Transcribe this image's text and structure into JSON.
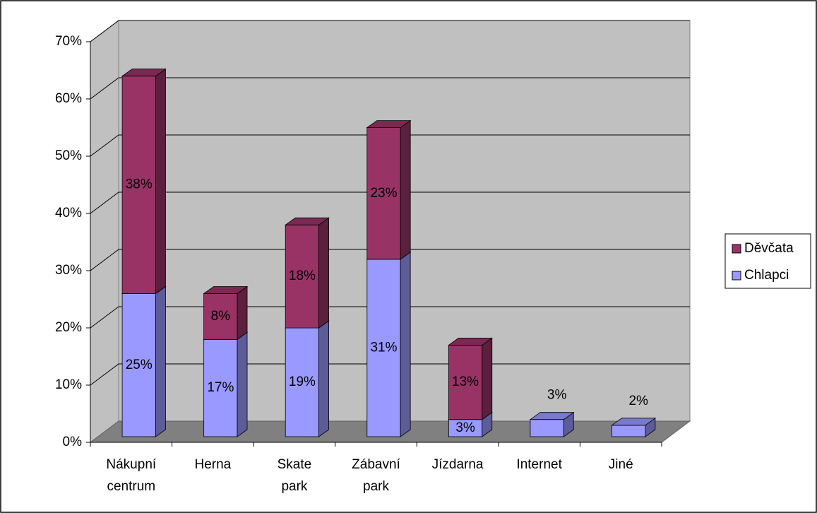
{
  "chart_data": {
    "type": "bar",
    "stacked": true,
    "three_d": true,
    "categories": [
      "Nákupní centrum",
      "Herna",
      "Skate park",
      "Zábavní park",
      "Jízdarna",
      "Internet",
      "Jiné"
    ],
    "series": [
      {
        "name": "Chlapci",
        "color": "#9999ff",
        "values": [
          25,
          17,
          19,
          31,
          3,
          3,
          2
        ],
        "value_labels": [
          "25%",
          "17%",
          "19%",
          "31%",
          "3%",
          "3%",
          "2%"
        ]
      },
      {
        "name": "Děvčata",
        "color": "#993366",
        "values": [
          38,
          8,
          18,
          23,
          13,
          null,
          null
        ],
        "value_labels": [
          "38%",
          "8%",
          "18%",
          "23%",
          "13%",
          null,
          null
        ]
      }
    ],
    "ylim": [
      0,
      70
    ],
    "yticks": [
      {
        "value": 0,
        "label": "0%"
      },
      {
        "value": 10,
        "label": "10%"
      },
      {
        "value": 20,
        "label": "20%"
      },
      {
        "value": 30,
        "label": "30%"
      },
      {
        "value": 40,
        "label": "40%"
      },
      {
        "value": 50,
        "label": "50%"
      },
      {
        "value": 60,
        "label": "60%"
      },
      {
        "value": 70,
        "label": "70%"
      }
    ],
    "grid": true,
    "legend": "right"
  }
}
